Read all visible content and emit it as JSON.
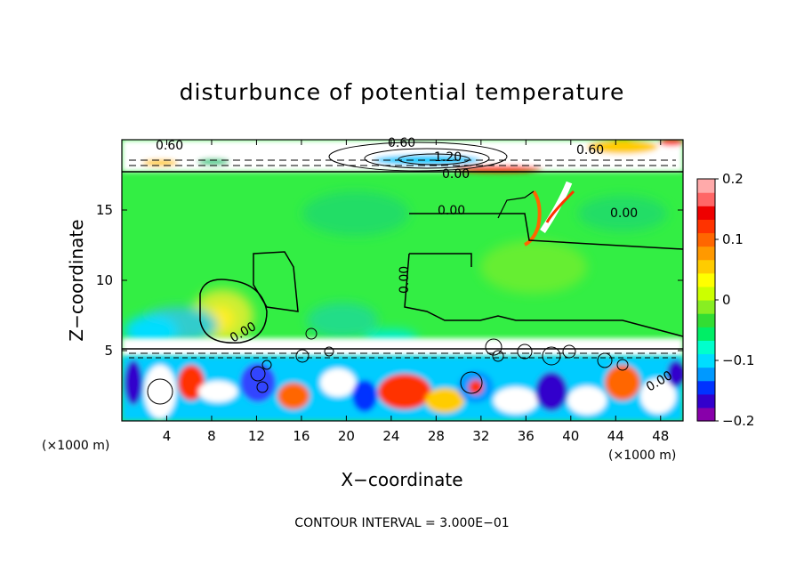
{
  "chart_data": {
    "type": "heatmap",
    "title": "disturbunce of potential temperature",
    "xlabel": "X−coordinate",
    "ylabel": "Z−coordinate",
    "x_unit_left": "(×1000 m)",
    "x_unit_right": "(×1000 m)",
    "footer": "CONTOUR INTERVAL = 3.000E−01",
    "xlim": [
      0,
      50
    ],
    "ylim": [
      0,
      20
    ],
    "x_ticks": [
      "4",
      "8",
      "12",
      "16",
      "20",
      "24",
      "28",
      "32",
      "36",
      "40",
      "44",
      "48"
    ],
    "y_ticks": [
      "5",
      "10",
      "15"
    ],
    "colorbar": {
      "range": [
        -0.2,
        0.2
      ],
      "tick_labels": [
        "0.2",
        "0.1",
        "0",
        "−0.1",
        "−0.2"
      ],
      "colors": [
        "#8800aa",
        "#3300cc",
        "#0033ff",
        "#0099ff",
        "#00ddff",
        "#00ffcc",
        "#00ee66",
        "#33dd33",
        "#88ee22",
        "#ccff00",
        "#ffff00",
        "#ffcc00",
        "#ff9900",
        "#ff6600",
        "#ff3300",
        "#ee0000",
        "#ff6666",
        "#ffaaaa"
      ]
    },
    "contour_labels": [
      "0.60",
      "0.60",
      "1.20",
      "0.00",
      "0.60",
      "0.00",
      "0.00",
      "0.00",
      "0.00",
      "0.00"
    ],
    "grid": false
  }
}
